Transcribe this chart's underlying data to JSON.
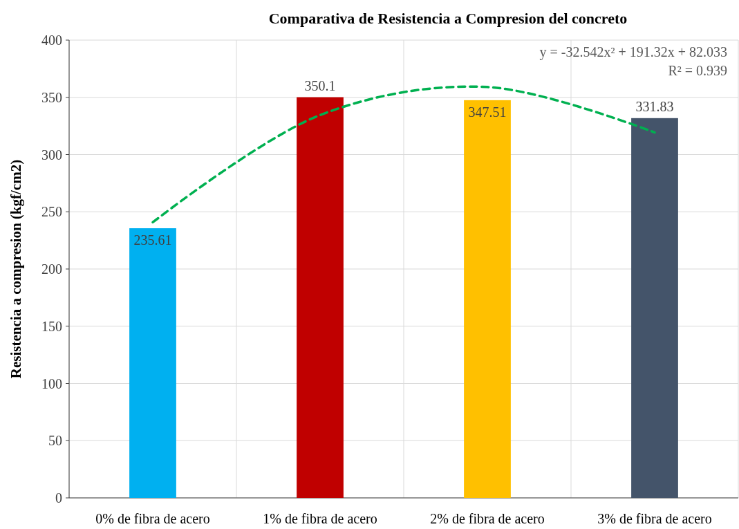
{
  "chart_data": {
    "type": "bar",
    "title": "Comparativa de Resistencia a Compresion del concreto",
    "ylabel": "Resistencia a compresion (kgf/cm2)",
    "categories": [
      "0% de fibra de acero",
      "1% de fibra de acero",
      "2% de fibra de acero",
      "3% de fibra de acero"
    ],
    "series": [
      {
        "colors": [
          "#00b0f0",
          "#c00000",
          "#ffc000",
          "#44546a"
        ],
        "values": [
          235.61,
          350.1,
          347.51,
          331.83
        ],
        "data_labels": true
      },
      {
        "type": "line",
        "color": "#00b050",
        "line_style": "dashed",
        "marker": "none",
        "values": [
          240.8,
          334.5,
          359.0,
          319.3
        ]
      }
    ],
    "ylim": [
      0,
      400
    ],
    "yticks": [
      0,
      50,
      100,
      150,
      200,
      250,
      300,
      350,
      400
    ],
    "grid": true,
    "annotations": [
      "y = -32.542x² + 191.32x + 82.033",
      "R² = 0.939"
    ]
  }
}
